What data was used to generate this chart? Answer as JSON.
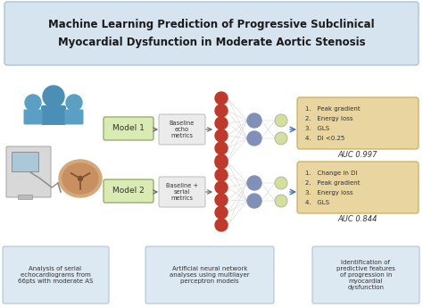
{
  "title_line1": "Machine Learning Prediction of Progressive Subclinical",
  "title_line2": "Myocardial Dysfunction in Moderate Aortic Stenosis",
  "title_bg": "#d6e4f0",
  "title_border": "#a8c4d8",
  "model1_label": "Model 1",
  "model2_label": "Model 2",
  "model_box_bg": "#d9eab5",
  "model_box_border": "#8aab5a",
  "input1_label": "Baseline\necho\nmetrics",
  "input2_label": "Baseline +\nserial\nmetrics",
  "input_box_bg": "#ebebeb",
  "input_box_border": "#bbbbbb",
  "red_node_color": "#c0392b",
  "hidden_node_color": "#8090b8",
  "output_node_color": "#d4e09a",
  "output_node_edge": "#aaaaaa",
  "result1_lines": [
    "1.   Peak gradient",
    "2.   Energy loss",
    "3.   GLS",
    "4.   DI <0.25"
  ],
  "result2_lines": [
    "1.   Change in DI",
    "2.   Peak gradient",
    "3.   Energy loss",
    "4.   GLS"
  ],
  "result_box_bg": "#e8d5a0",
  "result_box_border": "#c8a84b",
  "auc1": "AUC 0.997",
  "auc2": "AUC 0.844",
  "bottom_box_bg": "#dce8f2",
  "bottom_box_border": "#a8c0d0",
  "bottom1": "Analysis of serial\nechocardiograms from\n66pts with moderate AS",
  "bottom2": "Artificial neural network\nanalyses using multilayer\nperceptron models",
  "bottom3": "Identification of\npredictive features\nof progression in\nmyocardial\ndysfunction",
  "arrow_color": "#4472c4",
  "arrow_color2": "#666666"
}
